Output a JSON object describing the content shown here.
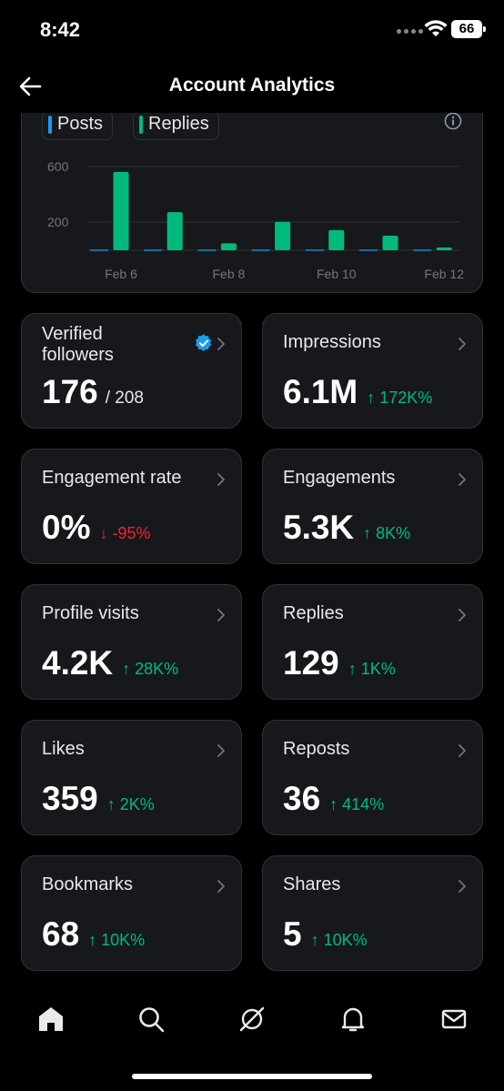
{
  "status_bar": {
    "time": "8:42",
    "battery": "66"
  },
  "header": {
    "title": "Account Analytics",
    "back_icon": "arrow-left-icon"
  },
  "chart": {
    "legend": [
      {
        "label": "Posts",
        "color": "#1d9bf0"
      },
      {
        "label": "Replies",
        "color": "#00ba7c"
      }
    ],
    "info_icon": "info-icon"
  },
  "chart_data": {
    "type": "bar",
    "categories": [
      "Feb 6",
      "Feb 7",
      "Feb 8",
      "Feb 9",
      "Feb 10",
      "Feb 11",
      "Feb 12"
    ],
    "x_tick_labels": [
      "Feb 6",
      "Feb 8",
      "Feb 10",
      "Feb 12"
    ],
    "y_tick_labels": [
      "600",
      "200"
    ],
    "ylim": [
      0,
      800
    ],
    "series": [
      {
        "name": "Posts",
        "color": "#1d9bf0",
        "values": [
          0,
          0,
          0,
          0,
          0,
          0,
          0
        ]
      },
      {
        "name": "Replies",
        "color": "#00ba7c",
        "values": [
          565,
          275,
          50,
          205,
          145,
          105,
          20
        ]
      }
    ],
    "grid": true
  },
  "metrics": [
    {
      "label": "Verified followers",
      "value": "176",
      "sub": "/ 208",
      "change": "",
      "dir": "none",
      "verified": true
    },
    {
      "label": "Impressions",
      "value": "6.1M",
      "sub": "",
      "change": "↑ 172K%",
      "dir": "up"
    },
    {
      "label": "Engagement rate",
      "value": "0%",
      "sub": "",
      "change": "↓ -95%",
      "dir": "down"
    },
    {
      "label": "Engagements",
      "value": "5.3K",
      "sub": "",
      "change": "↑ 8K%",
      "dir": "up"
    },
    {
      "label": "Profile visits",
      "value": "4.2K",
      "sub": "",
      "change": "↑ 28K%",
      "dir": "up"
    },
    {
      "label": "Replies",
      "value": "129",
      "sub": "",
      "change": "↑ 1K%",
      "dir": "up"
    },
    {
      "label": "Likes",
      "value": "359",
      "sub": "",
      "change": "↑ 2K%",
      "dir": "up"
    },
    {
      "label": "Reposts",
      "value": "36",
      "sub": "",
      "change": "↑ 414%",
      "dir": "up"
    },
    {
      "label": "Bookmarks",
      "value": "68",
      "sub": "",
      "change": "↑ 10K%",
      "dir": "up"
    },
    {
      "label": "Shares",
      "value": "5",
      "sub": "",
      "change": "↑ 10K%",
      "dir": "up"
    }
  ],
  "bottom_nav": [
    {
      "name": "home-icon"
    },
    {
      "name": "search-icon"
    },
    {
      "name": "grok-icon"
    },
    {
      "name": "bell-icon"
    },
    {
      "name": "mail-icon"
    }
  ]
}
